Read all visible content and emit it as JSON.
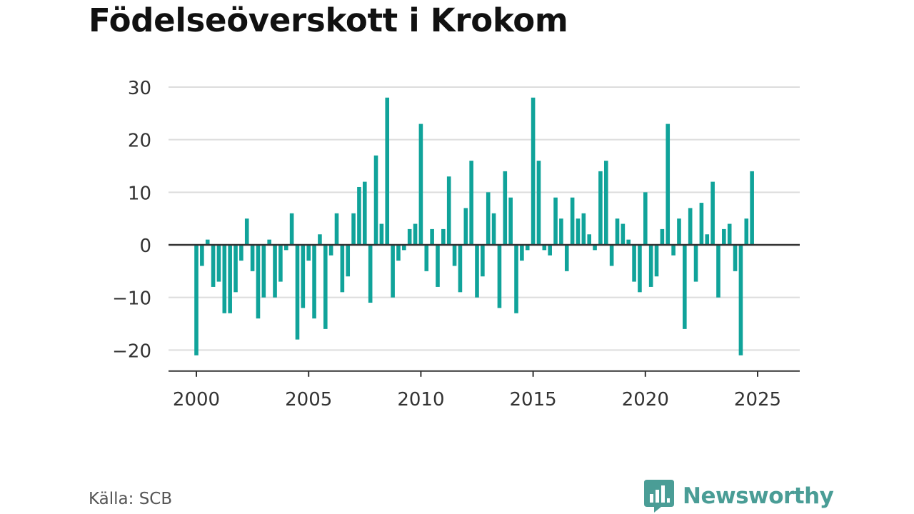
{
  "title": "Födelseöverskott i Krokom",
  "source": "Källa: SCB",
  "brand": {
    "name": "Newsworthy",
    "icon": "newsworthy-bar-chart-bubble-icon",
    "color": "#4a9d96"
  },
  "colors": {
    "bar": "#10a39a",
    "grid": "#dddddd",
    "axis": "#333333",
    "tick_text": "#333333",
    "title": "#111111"
  },
  "chart_data": {
    "type": "bar",
    "title": "Födelseöverskott i Krokom",
    "xlabel": "",
    "ylabel": "",
    "ylim": [
      -24,
      30
    ],
    "y_ticks": [
      30,
      20,
      10,
      0,
      -10,
      -20
    ],
    "y_tick_labels": [
      "30",
      "20",
      "10",
      "0",
      "−10",
      "−20"
    ],
    "x_ticks": [
      2000,
      2005,
      2010,
      2015,
      2020,
      2025
    ],
    "x_tick_labels": [
      "2000",
      "2005",
      "2010",
      "2015",
      "2020",
      "2025"
    ],
    "x_axis_position": "bottom",
    "grid": true,
    "frequency": "quarterly",
    "start_period": "2000 Q1",
    "values": [
      -21,
      -4,
      1,
      -8,
      -7,
      -13,
      -13,
      -9,
      -3,
      5,
      -5,
      -14,
      -10,
      1,
      -10,
      -7,
      -1,
      6,
      -18,
      -12,
      -3,
      -14,
      2,
      -16,
      -2,
      6,
      -9,
      -6,
      6,
      11,
      12,
      -11,
      17,
      4,
      28,
      -10,
      -3,
      -1,
      3,
      4,
      23,
      -5,
      3,
      -8,
      3,
      13,
      -4,
      -9,
      7,
      16,
      -10,
      -6,
      10,
      6,
      -12,
      14,
      9,
      -13,
      -3,
      -1,
      28,
      16,
      -1,
      -2,
      9,
      5,
      -5,
      9,
      5,
      6,
      2,
      -1,
      14,
      16,
      -4,
      5,
      4,
      1,
      -7,
      -9,
      10,
      -8,
      -6,
      3,
      23,
      -2,
      5,
      -16,
      7,
      -7,
      8,
      2,
      12,
      -10,
      3,
      4,
      -5,
      -21,
      5,
      14
    ]
  }
}
